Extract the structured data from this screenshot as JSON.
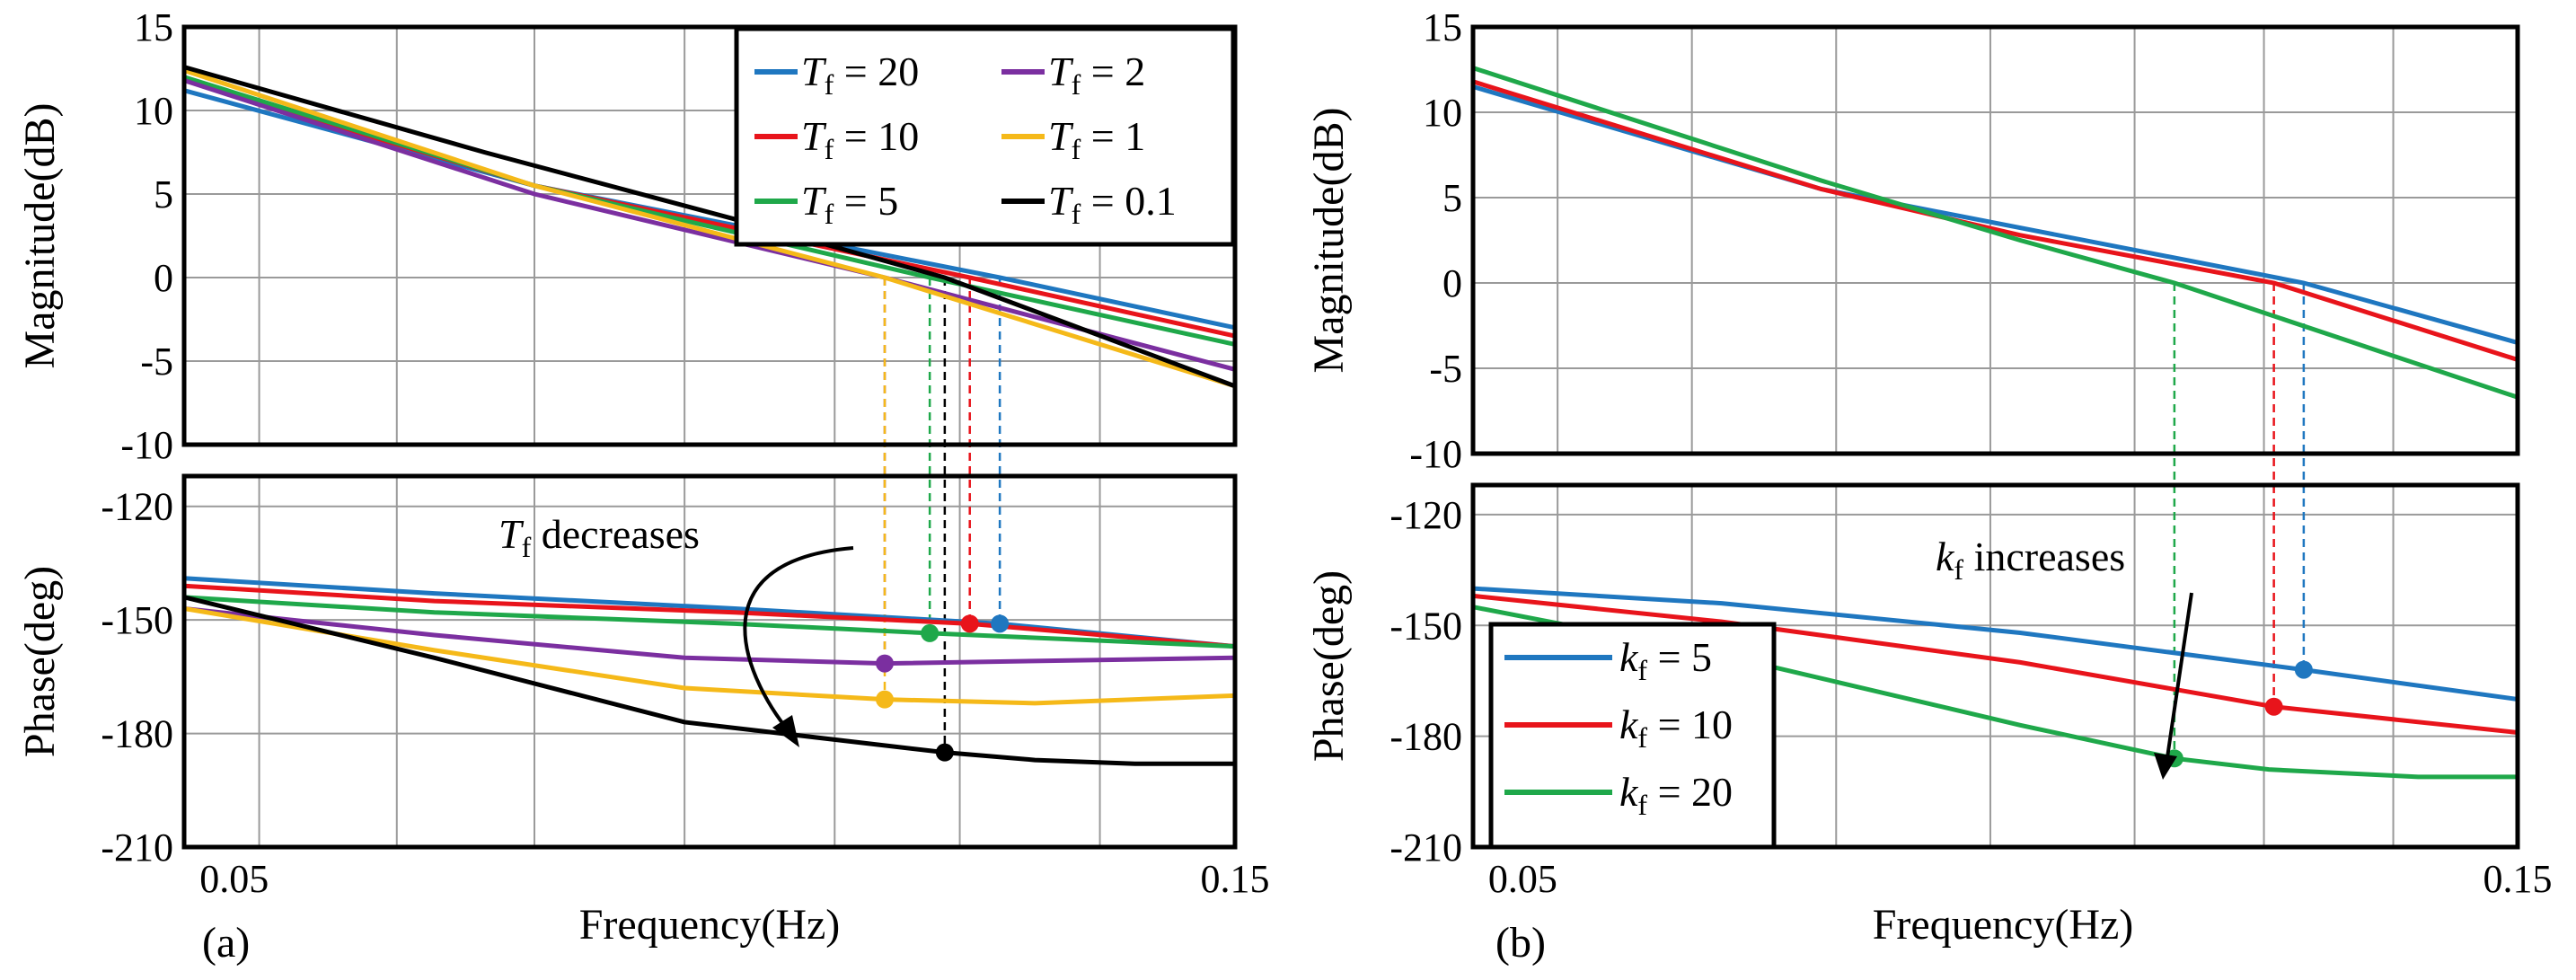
{
  "chart_data": [
    {
      "id": "a",
      "type": "line",
      "panel_label": "(a)",
      "xlabel": "Frequency(Hz)",
      "xlim": [
        0.045,
        0.15
      ],
      "x_ticks": [
        0.05,
        0.15
      ],
      "x_tick_labels": [
        "0.05",
        "0.15"
      ],
      "magnitude": {
        "ylabel": "Magnitude(dB)",
        "ylim": [
          -10,
          15
        ],
        "y_ticks": [
          -10,
          -5,
          0,
          5,
          10,
          15
        ],
        "y_tick_labels": [
          "-10",
          "-5",
          "0",
          "5",
          "10",
          "15"
        ]
      },
      "phase": {
        "ylabel": "Phase(deg)",
        "ylim": [
          -210,
          -112
        ],
        "y_ticks": [
          -120,
          -150,
          -180,
          -210
        ],
        "y_tick_labels": [
          "-120",
          "-150",
          "-180",
          "-210"
        ]
      },
      "legend": {
        "position": "top-right",
        "columns": 2
      },
      "annotation": {
        "prefix": "T",
        "subscript": "f",
        "text": " decreases"
      },
      "series": [
        {
          "name": "Tf = 20",
          "symbol": "T",
          "sub": "f",
          "value_text": " = 20",
          "color": "#1f77c0",
          "crossover": 0.1265,
          "mag_x": [
            0.045,
            0.08,
            0.1265,
            0.15
          ],
          "mag_y": [
            11.2,
            5.5,
            0,
            -3.0
          ],
          "ph_x": [
            0.045,
            0.07,
            0.1,
            0.1265,
            0.15
          ],
          "ph_y": [
            -139,
            -143,
            -147,
            -151,
            -157
          ]
        },
        {
          "name": "Tf = 10",
          "symbol": "T",
          "sub": "f",
          "value_text": " = 10",
          "color": "#e8141b",
          "crossover": 0.1235,
          "mag_x": [
            0.045,
            0.08,
            0.1235,
            0.15
          ],
          "mag_y": [
            11.8,
            5.5,
            0,
            -3.5
          ],
          "ph_x": [
            0.045,
            0.07,
            0.1,
            0.1235,
            0.15
          ],
          "ph_y": [
            -141,
            -145,
            -148,
            -151,
            -157
          ]
        },
        {
          "name": "Tf = 5",
          "symbol": "T",
          "sub": "f",
          "value_text": " = 5",
          "color": "#1fa84a",
          "crossover": 0.1195,
          "mag_x": [
            0.045,
            0.08,
            0.1195,
            0.15
          ],
          "mag_y": [
            12.0,
            5.5,
            0,
            -4.0
          ],
          "ph_x": [
            0.045,
            0.07,
            0.1,
            0.1195,
            0.15
          ],
          "ph_y": [
            -144,
            -148,
            -151,
            -153.5,
            -157
          ]
        },
        {
          "name": "Tf = 2",
          "symbol": "T",
          "sub": "f",
          "value_text": " = 2",
          "color": "#7b2fa0",
          "crossover": 0.115,
          "mag_x": [
            0.045,
            0.08,
            0.115,
            0.15
          ],
          "mag_y": [
            11.8,
            5.0,
            0,
            -5.5
          ],
          "ph_x": [
            0.045,
            0.07,
            0.095,
            0.115,
            0.15
          ],
          "ph_y": [
            -147,
            -154,
            -160,
            -161.5,
            -160
          ]
        },
        {
          "name": "Tf = 1",
          "symbol": "T",
          "sub": "f",
          "value_text": " = 1",
          "color": "#f5b919",
          "crossover": 0.115,
          "mag_x": [
            0.045,
            0.08,
            0.115,
            0.15
          ],
          "mag_y": [
            12.4,
            5.5,
            0,
            -6.5
          ],
          "ph_x": [
            0.045,
            0.07,
            0.095,
            0.115,
            0.13,
            0.15
          ],
          "ph_y": [
            -147,
            -158,
            -168,
            -171,
            -172,
            -170
          ]
        },
        {
          "name": "Tf = 0.1",
          "symbol": "T",
          "sub": "f",
          "value_text": " = 0.1",
          "color": "#000000",
          "crossover": 0.121,
          "mag_x": [
            0.045,
            0.075,
            0.1,
            0.121,
            0.15
          ],
          "mag_y": [
            12.6,
            7.5,
            3.5,
            0,
            -6.5
          ],
          "ph_x": [
            0.045,
            0.07,
            0.095,
            0.121,
            0.13,
            0.14,
            0.15
          ],
          "ph_y": [
            -144,
            -160,
            -177,
            -185,
            -187,
            -188,
            -188
          ]
        }
      ]
    },
    {
      "id": "b",
      "type": "line",
      "panel_label": "(b)",
      "xlabel": "Frequency(Hz)",
      "xlim": [
        0.045,
        0.15
      ],
      "x_ticks": [
        0.05,
        0.15
      ],
      "x_tick_labels": [
        "0.05",
        "0.15"
      ],
      "magnitude": {
        "ylabel": "Magnitude(dB)",
        "ylim": [
          -10,
          15
        ],
        "y_ticks": [
          -10,
          -5,
          0,
          5,
          10,
          15
        ],
        "y_tick_labels": [
          "-10",
          "-5",
          "0",
          "5",
          "10",
          "15"
        ]
      },
      "phase": {
        "ylabel": "Phase(deg)",
        "ylim": [
          -210,
          -112
        ],
        "y_ticks": [
          -120,
          -150,
          -180,
          -210
        ],
        "y_tick_labels": [
          "-120",
          "-150",
          "-180",
          "-210"
        ]
      },
      "legend": {
        "position": "bottom-left",
        "columns": 1
      },
      "annotation": {
        "prefix": "k",
        "subscript": "f",
        "text": " increases"
      },
      "series": [
        {
          "name": "kf = 5",
          "symbol": "k",
          "sub": "f",
          "value_text": " = 5",
          "color": "#1f77c0",
          "crossover": 0.1285,
          "mag_x": [
            0.045,
            0.08,
            0.1285,
            0.15
          ],
          "mag_y": [
            11.5,
            5.5,
            0,
            -3.5
          ],
          "ph_x": [
            0.045,
            0.07,
            0.1,
            0.1285,
            0.15
          ],
          "ph_y": [
            -140,
            -144,
            -152,
            -162,
            -170
          ]
        },
        {
          "name": "kf = 10",
          "symbol": "k",
          "sub": "f",
          "value_text": " = 10",
          "color": "#e8141b",
          "crossover": 0.1255,
          "mag_x": [
            0.045,
            0.08,
            0.1,
            0.1255,
            0.15
          ],
          "mag_y": [
            11.8,
            5.5,
            2.8,
            0,
            -4.5
          ],
          "ph_x": [
            0.045,
            0.07,
            0.1,
            0.1255,
            0.15
          ],
          "ph_y": [
            -142,
            -149,
            -160,
            -172,
            -179
          ]
        },
        {
          "name": "kf = 20",
          "symbol": "k",
          "sub": "f",
          "value_text": " = 20",
          "color": "#1fa84a",
          "crossover": 0.1155,
          "mag_x": [
            0.045,
            0.08,
            0.1,
            0.1155,
            0.15
          ],
          "mag_y": [
            12.6,
            6.0,
            2.5,
            0,
            -6.7
          ],
          "ph_x": [
            0.045,
            0.07,
            0.1,
            0.1155,
            0.125,
            0.14,
            0.15
          ],
          "ph_y": [
            -145,
            -158,
            -177,
            -186,
            -189,
            -191,
            -191
          ]
        }
      ]
    }
  ]
}
